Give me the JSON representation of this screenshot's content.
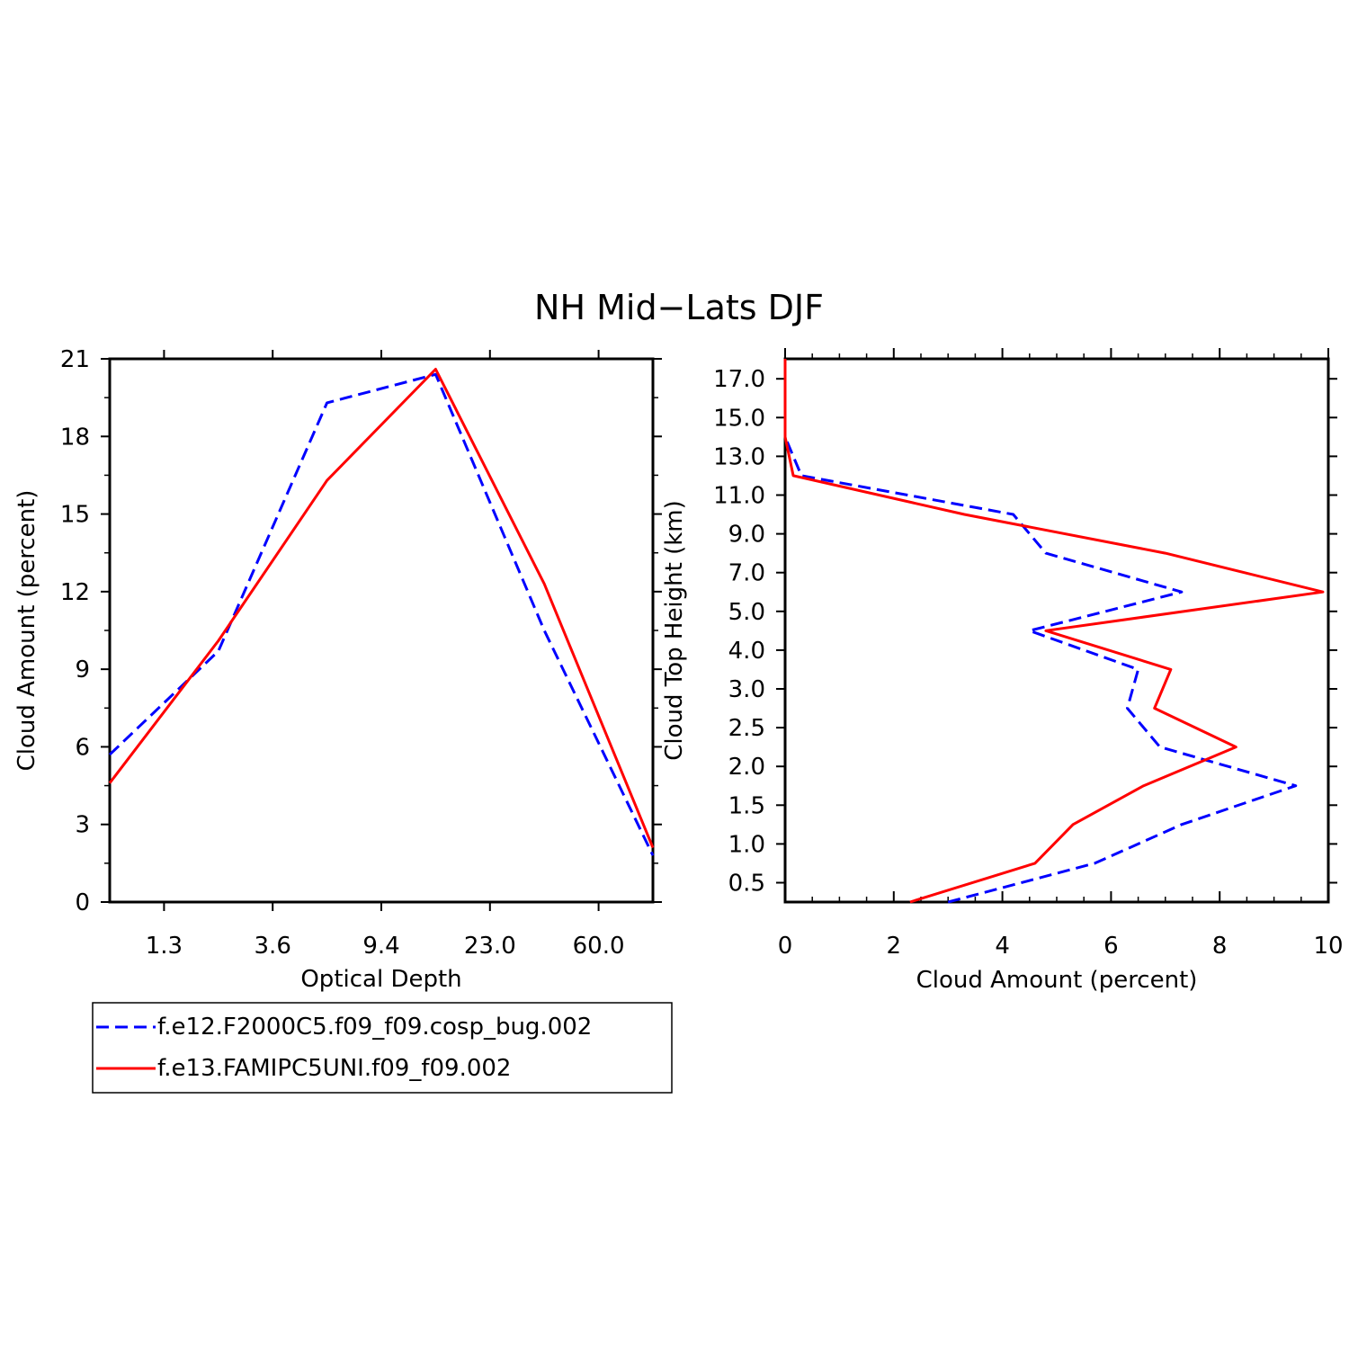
{
  "figure": {
    "title": "NH Mid−Lats DJF",
    "colors": {
      "series_a": "#0000ff",
      "series_b": "#ff0000",
      "axis": "#000000"
    }
  },
  "legend": {
    "entries": [
      {
        "label": "f.e12.F2000C5.f09_f09.cosp_bug.002",
        "color": "#0000ff",
        "dash": true
      },
      {
        "label": "f.e13.FAMIPC5UNI.f09_f09.002",
        "color": "#ff0000",
        "dash": false
      }
    ]
  },
  "chart_data": [
    {
      "type": "line",
      "xlabel": "Optical Depth",
      "ylabel": "Cloud Amount (percent)",
      "x_tick_labels": [
        "1.3",
        "3.6",
        "9.4",
        "23.0",
        "60.0"
      ],
      "y_ticks": [
        0,
        3,
        6,
        9,
        12,
        15,
        18,
        21
      ],
      "ylim": [
        0,
        21
      ],
      "categories": [
        "0.3–1.3",
        "1.3–3.6",
        "3.6–9.4",
        "9.4–23.0",
        "23.0–60.0",
        ">60.0"
      ],
      "series": [
        {
          "name": "f.e12.F2000C5.f09_f09.cosp_bug.002",
          "color": "#0000ff",
          "dash": true,
          "values": [
            5.7,
            9.7,
            19.3,
            20.4,
            10.5,
            1.8
          ]
        },
        {
          "name": "f.e13.FAMIPC5UNI.f09_f09.002",
          "color": "#ff0000",
          "dash": false,
          "values": [
            4.6,
            10.1,
            16.3,
            20.6,
            12.3,
            2.1
          ]
        }
      ]
    },
    {
      "type": "line",
      "xlabel": "Cloud Amount (percent)",
      "ylabel": "Cloud Top Height (km)",
      "xlim": [
        0,
        10
      ],
      "x_ticks": [
        0,
        2,
        4,
        6,
        8,
        10
      ],
      "y_tick_labels": [
        "0.5",
        "1.0",
        "1.5",
        "2.0",
        "2.5",
        "3.0",
        "4.0",
        "5.0",
        "7.0",
        "9.0",
        "11.0",
        "13.0",
        "15.0",
        "17.0"
      ],
      "height_levels": [
        "0.0–0.5",
        "0.5–1.0",
        "1.0–1.5",
        "1.5–2.0",
        "2.0–2.5",
        "2.5–3.0",
        "3.0–4.0",
        "4.0–5.0",
        "5.0–7.0",
        "7.0–9.0",
        "9.0–11.0",
        "11.0–13.0",
        "13.0–15.0",
        "15.0–17.0",
        "17.0–19.0"
      ],
      "series": [
        {
          "name": "f.e12.F2000C5.f09_f09.cosp_bug.002",
          "color": "#0000ff",
          "dash": true,
          "values": [
            3.0,
            5.7,
            7.3,
            9.4,
            6.9,
            6.3,
            6.5,
            4.5,
            7.3,
            4.8,
            4.2,
            0.3,
            0.0,
            0.0,
            0.0
          ]
        },
        {
          "name": "f.e13.FAMIPC5UNI.f09_f09.002",
          "color": "#ff0000",
          "dash": false,
          "values": [
            2.3,
            4.6,
            5.3,
            6.6,
            8.3,
            6.8,
            7.1,
            4.8,
            9.9,
            7.0,
            3.3,
            0.15,
            0.0,
            0.0,
            0.0
          ]
        }
      ]
    }
  ]
}
